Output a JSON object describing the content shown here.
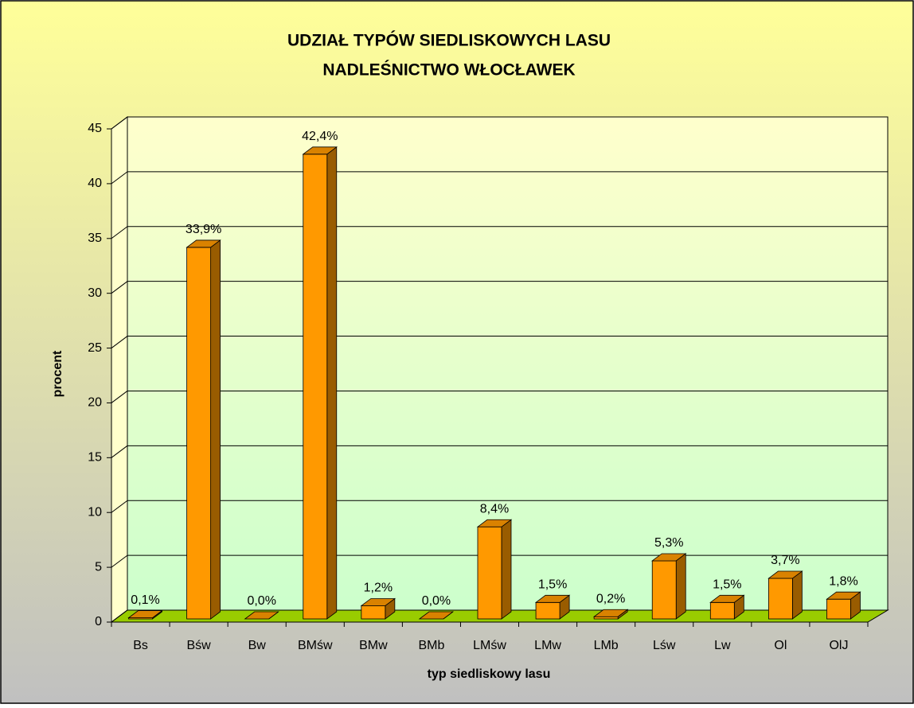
{
  "chart_data": {
    "type": "bar3d",
    "title": [
      "UDZIAŁ TYPÓW SIEDLISKOWYCH LASU",
      "NADLEŚNICTWO WŁOCŁAWEK"
    ],
    "x_label": "typ siedliskowy lasu",
    "y_label": "procent",
    "categories": [
      "Bs",
      "Bśw",
      "Bw",
      "BMśw",
      "BMw",
      "BMb",
      "LMśw",
      "LMw",
      "LMb",
      "Lśw",
      "Lw",
      "Ol",
      "OlJ"
    ],
    "values": [
      0.1,
      33.9,
      0.0,
      42.4,
      1.2,
      0.0,
      8.4,
      1.5,
      0.2,
      5.3,
      1.5,
      3.7,
      1.8
    ],
    "value_labels": [
      "0,1%",
      "33,9%",
      "0,0%",
      "42,4%",
      "1,2%",
      "0,0%",
      "8,4%",
      "1,5%",
      "0,2%",
      "5,3%",
      "1,5%",
      "3,7%",
      "1,8%"
    ],
    "color": "#ff9900",
    "ylim": [
      0,
      45
    ],
    "yticks": [
      0,
      5,
      10,
      15,
      20,
      25,
      30,
      35,
      40,
      45
    ],
    "grid": true
  }
}
